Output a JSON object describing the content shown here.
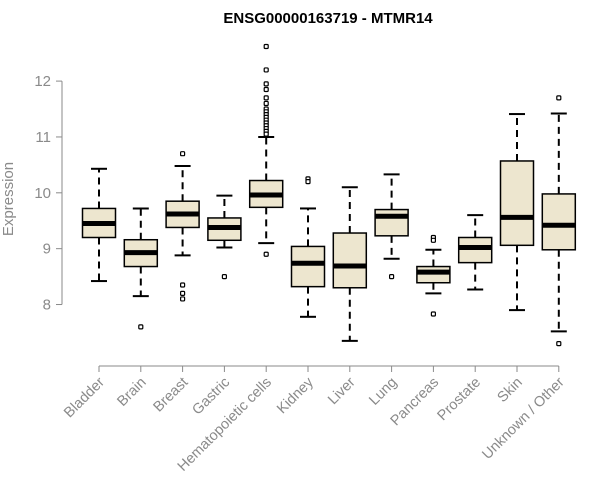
{
  "chart_data": {
    "type": "boxplot",
    "title": "ENSG00000163719 - MTMR14",
    "xlabel": "",
    "ylabel": "Expression",
    "ylim": [
      7.15,
      12.7
    ],
    "yticks": [
      8,
      9,
      10,
      11,
      12
    ],
    "grid": false,
    "box_fill": "#ede6cf",
    "box_stroke": "#000000",
    "categories": [
      "Bladder",
      "Brain",
      "Breast",
      "Gastric",
      "Hematopoietic cells",
      "Kidney",
      "Liver",
      "Lung",
      "Pancreas",
      "Prostate",
      "Skin",
      "Unknown / Other"
    ],
    "boxes": [
      {
        "category": "Bladder",
        "whisker_low": 8.42,
        "q1": 9.2,
        "median": 9.45,
        "q3": 9.72,
        "whisker_high": 10.43,
        "outliers": []
      },
      {
        "category": "Brain",
        "whisker_low": 8.15,
        "q1": 8.68,
        "median": 8.93,
        "q3": 9.16,
        "whisker_high": 9.72,
        "outliers": [
          7.6
        ]
      },
      {
        "category": "Breast",
        "whisker_low": 8.88,
        "q1": 9.38,
        "median": 9.62,
        "q3": 9.85,
        "whisker_high": 10.48,
        "outliers": [
          10.7,
          8.35,
          8.2,
          8.1
        ]
      },
      {
        "category": "Gastric",
        "whisker_low": 9.02,
        "q1": 9.15,
        "median": 9.38,
        "q3": 9.55,
        "whisker_high": 9.95,
        "outliers": [
          8.5
        ]
      },
      {
        "category": "Hematopoietic cells",
        "whisker_low": 9.1,
        "q1": 9.74,
        "median": 9.96,
        "q3": 10.22,
        "whisker_high": 11.0,
        "outliers": [
          12.62,
          12.2,
          11.95,
          11.85,
          11.7,
          11.6,
          11.5,
          11.45,
          11.4,
          11.35,
          11.3,
          11.25,
          11.2,
          11.15,
          11.1,
          11.05,
          8.9
        ]
      },
      {
        "category": "Kidney",
        "whisker_low": 7.78,
        "q1": 8.32,
        "median": 8.74,
        "q3": 9.04,
        "whisker_high": 9.72,
        "outliers": [
          10.25,
          10.2
        ]
      },
      {
        "category": "Liver",
        "whisker_low": 7.35,
        "q1": 8.3,
        "median": 8.69,
        "q3": 9.28,
        "whisker_high": 10.1,
        "outliers": []
      },
      {
        "category": "Lung",
        "whisker_low": 8.82,
        "q1": 9.23,
        "median": 9.58,
        "q3": 9.7,
        "whisker_high": 10.33,
        "outliers": [
          8.5
        ]
      },
      {
        "category": "Pancreas",
        "whisker_low": 8.2,
        "q1": 8.39,
        "median": 8.58,
        "q3": 8.68,
        "whisker_high": 8.98,
        "outliers": [
          9.2,
          9.15,
          7.83
        ]
      },
      {
        "category": "Prostate",
        "whisker_low": 8.27,
        "q1": 8.75,
        "median": 9.02,
        "q3": 9.2,
        "whisker_high": 9.6,
        "outliers": []
      },
      {
        "category": "Skin",
        "whisker_low": 7.9,
        "q1": 9.06,
        "median": 9.56,
        "q3": 10.57,
        "whisker_high": 11.41,
        "outliers": []
      },
      {
        "category": "Unknown / Other",
        "whisker_low": 7.52,
        "q1": 8.98,
        "median": 9.42,
        "q3": 9.98,
        "whisker_high": 11.42,
        "outliers": [
          11.7,
          7.3
        ]
      }
    ]
  }
}
